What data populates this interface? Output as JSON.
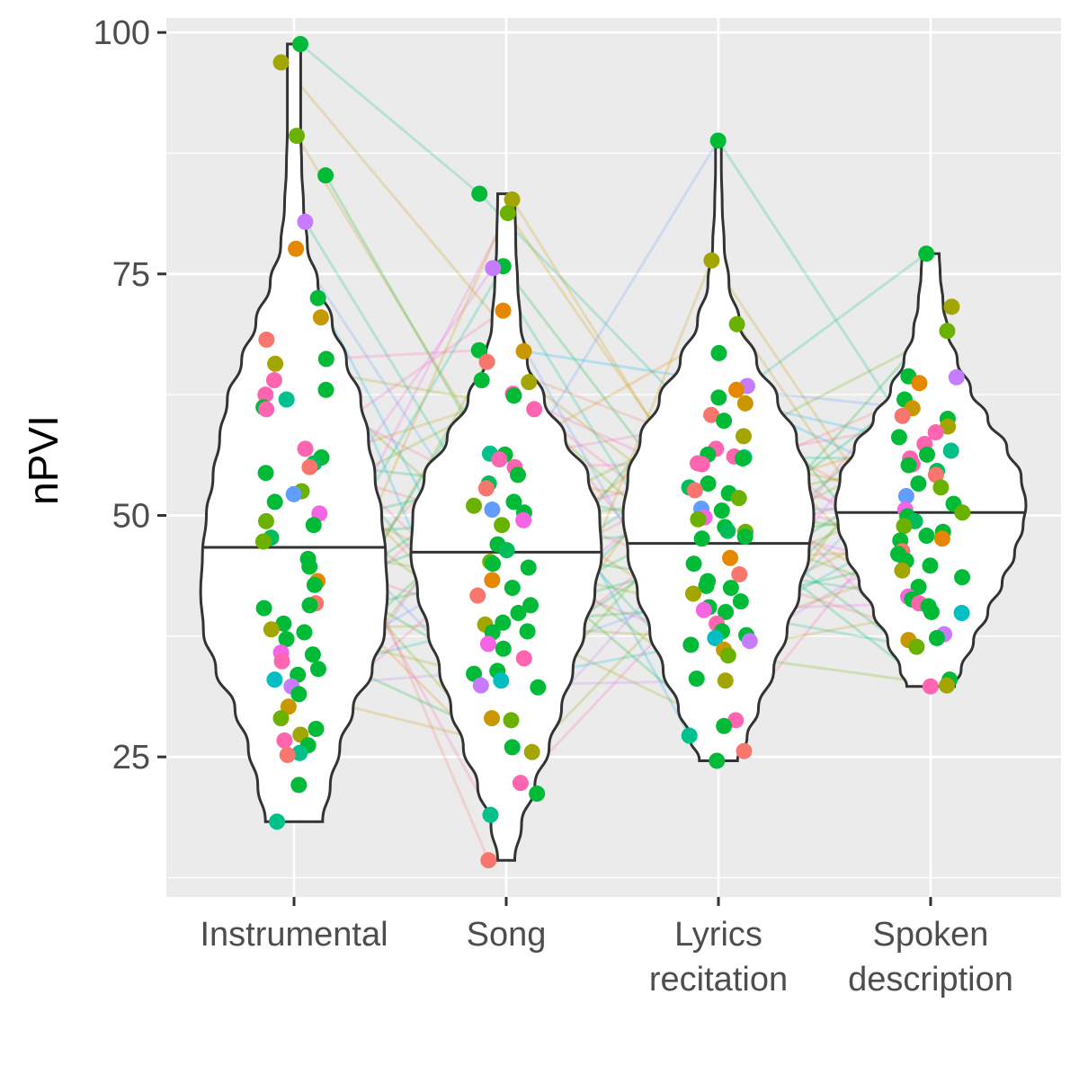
{
  "chart_data": {
    "type": "violin",
    "title": "",
    "xlabel": "",
    "ylabel": "nPVI",
    "categories": [
      "Instrumental",
      "Song",
      "Lyrics recitation",
      "Spoken description"
    ],
    "category_labels": [
      [
        "Instrumental"
      ],
      [
        "Song"
      ],
      [
        "Lyrics",
        "recitation"
      ],
      [
        "Spoken",
        "description"
      ]
    ],
    "ylim": [
      10.5,
      101.5
    ],
    "yticks": [
      25,
      50,
      75,
      100
    ],
    "grid": true,
    "legend": "none",
    "medians": [
      46.7,
      46.2,
      47.1,
      50.3
    ],
    "ranges": [
      [
        18.3,
        98.8
      ],
      [
        14.3,
        83.3
      ],
      [
        24.6,
        88.8
      ],
      [
        32.3,
        77.1
      ]
    ],
    "violin_profiles": [
      {
        "y": [
          18.3,
          22,
          26,
          30,
          34,
          38,
          42,
          46,
          50,
          54,
          58,
          62,
          66,
          70,
          74,
          78,
          82,
          86,
          90,
          94,
          98.8
        ],
        "w": [
          0.3,
          0.38,
          0.48,
          0.62,
          0.82,
          0.95,
          0.98,
          0.96,
          0.92,
          0.85,
          0.78,
          0.7,
          0.55,
          0.4,
          0.25,
          0.14,
          0.1,
          0.08,
          0.07,
          0.07,
          0.07
        ]
      },
      {
        "y": [
          14.3,
          18,
          22,
          26,
          30,
          34,
          38,
          42,
          46,
          50,
          54,
          58,
          62,
          66,
          70,
          74,
          78,
          83.3
        ],
        "w": [
          0.09,
          0.16,
          0.3,
          0.45,
          0.58,
          0.7,
          0.82,
          0.93,
          1.0,
          0.98,
          0.86,
          0.62,
          0.4,
          0.22,
          0.15,
          0.12,
          0.1,
          0.09
        ]
      },
      {
        "y": [
          24.6,
          27,
          30,
          34,
          38,
          42,
          46,
          50,
          54,
          58,
          62,
          66,
          70,
          74,
          78,
          82,
          86,
          88.8
        ],
        "w": [
          0.2,
          0.3,
          0.42,
          0.58,
          0.72,
          0.85,
          0.95,
          1.0,
          0.95,
          0.82,
          0.62,
          0.4,
          0.22,
          0.11,
          0.06,
          0.04,
          0.03,
          0.03
        ]
      },
      {
        "y": [
          32.3,
          34,
          37,
          40,
          43,
          46,
          49,
          51,
          54,
          57,
          60,
          63,
          66,
          69,
          72,
          75,
          77.1
        ],
        "w": [
          0.25,
          0.32,
          0.45,
          0.6,
          0.75,
          0.88,
          0.97,
          1.0,
          0.95,
          0.8,
          0.6,
          0.42,
          0.28,
          0.18,
          0.13,
          0.1,
          0.09
        ]
      }
    ],
    "series": [
      {
        "name": "Instrumental",
        "values": [
          98.8,
          96.9,
          89.3,
          85.2,
          80.4,
          77.6,
          72.5,
          70.5,
          68.2,
          66.2,
          65.7,
          64.0,
          63.0,
          62.5,
          62.0,
          61.2,
          61.0,
          56.9,
          56.0,
          55.4,
          55.0,
          54.4,
          52.5,
          52.2,
          51.4,
          50.2,
          49.4,
          49.0,
          47.7,
          47.3,
          45.5,
          44.7,
          43.2,
          42.8,
          40.9,
          40.7,
          40.4,
          38.8,
          38.2,
          37.9,
          37.2,
          35.8,
          35.6,
          34.9,
          34.1,
          33.5,
          33.0,
          32.3,
          31.5,
          30.2,
          29.0,
          27.9,
          27.3,
          26.7,
          26.2,
          25.4,
          25.2,
          22.1,
          18.3
        ]
      },
      {
        "name": "Song",
        "values": [
          83.3,
          82.7,
          81.3,
          75.8,
          75.6,
          71.2,
          67.1,
          67.0,
          65.9,
          64.0,
          63.8,
          62.6,
          62.4,
          61.0,
          56.4,
          56.3,
          55.8,
          55.0,
          54.2,
          53.3,
          52.8,
          51.4,
          51.0,
          50.6,
          50.3,
          49.5,
          49.0,
          47.0,
          46.4,
          45.2,
          45.0,
          44.6,
          43.3,
          42.5,
          41.7,
          40.7,
          39.9,
          38.9,
          38.7,
          38.0,
          37.9,
          36.7,
          36.2,
          35.2,
          33.9,
          33.6,
          32.9,
          32.4,
          32.2,
          29.0,
          28.8,
          26.0,
          25.5,
          22.3,
          21.2,
          19.0,
          14.3
        ]
      },
      {
        "name": "Lyrics recitation",
        "values": [
          88.8,
          76.4,
          69.8,
          66.8,
          63.4,
          63.0,
          62.2,
          61.6,
          60.4,
          59.8,
          58.2,
          56.9,
          56.3,
          56.1,
          56.0,
          55.9,
          55.4,
          55.3,
          53.3,
          52.9,
          52.6,
          52.3,
          51.8,
          50.7,
          50.5,
          49.8,
          49.6,
          48.8,
          48.4,
          48.3,
          47.8,
          47.6,
          45.6,
          45.0,
          43.9,
          43.2,
          42.7,
          42.5,
          41.9,
          41.1,
          40.5,
          40.2,
          40.0,
          38.8,
          38.0,
          37.6,
          37.3,
          37.0,
          36.6,
          36.1,
          35.5,
          33.1,
          32.9,
          28.8,
          28.2,
          27.2,
          25.6,
          24.6
        ]
      },
      {
        "name": "Spoken description",
        "values": [
          77.1,
          71.6,
          69.1,
          64.4,
          64.3,
          63.7,
          62.0,
          61.1,
          60.3,
          60.0,
          59.2,
          58.6,
          58.1,
          57.4,
          56.7,
          56.3,
          55.9,
          55.3,
          55.2,
          54.6,
          54.2,
          53.3,
          52.9,
          52.0,
          51.2,
          50.6,
          50.3,
          49.9,
          49.4,
          48.9,
          48.3,
          47.9,
          47.6,
          47.4,
          46.3,
          46.0,
          45.3,
          44.8,
          44.3,
          43.6,
          42.6,
          41.6,
          41.3,
          40.9,
          40.6,
          40.0,
          39.9,
          37.7,
          37.3,
          37.1,
          36.4,
          33.0,
          32.4,
          32.3
        ]
      }
    ],
    "colors": {
      "panel_bg": "#ebebeb",
      "grid": "#ffffff",
      "violin_outline": "#333333",
      "axis_text": "#4d4d4d",
      "ticks": "#333333",
      "point_palette": [
        "#00BA38",
        "#00C08B",
        "#00BFC4",
        "#00B0F6",
        "#619CFF",
        "#C77CFF",
        "#F564E3",
        "#FF64B0",
        "#F8766D",
        "#E58700",
        "#C99800",
        "#A3A500",
        "#6BB100",
        "#00BC59"
      ]
    }
  }
}
